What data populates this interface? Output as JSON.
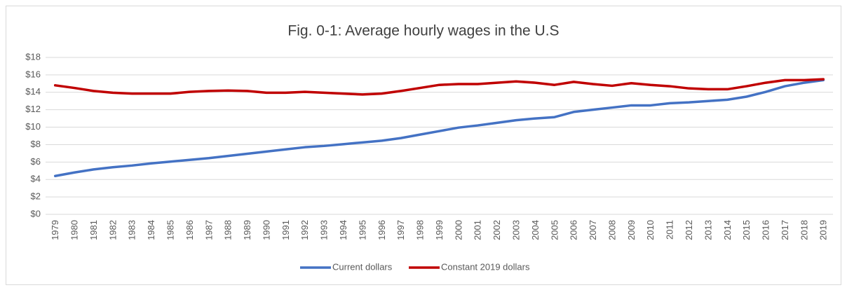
{
  "chart_data": {
    "type": "line",
    "title": "Fig. 0-1: Average hourly wages in the U.S",
    "categories": [
      "1979",
      "1980",
      "1981",
      "1982",
      "1983",
      "1984",
      "1985",
      "1986",
      "1987",
      "1988",
      "1989",
      "1990",
      "1991",
      "1992",
      "1993",
      "1994",
      "1995",
      "1996",
      "1997",
      "1998",
      "1999",
      "2000",
      "2001",
      "2002",
      "2003",
      "2004",
      "2005",
      "2006",
      "2007",
      "2008",
      "2009",
      "2010",
      "2011",
      "2012",
      "2013",
      "2014",
      "2015",
      "2016",
      "2017",
      "2018",
      "2019"
    ],
    "series": [
      {
        "name": "Current dollars",
        "color": "#4472c4",
        "values": [
          4.4,
          4.8,
          5.15,
          5.4,
          5.6,
          5.85,
          6.05,
          6.25,
          6.45,
          6.7,
          6.95,
          7.2,
          7.45,
          7.7,
          7.85,
          8.05,
          8.25,
          8.45,
          8.75,
          9.15,
          9.55,
          9.95,
          10.2,
          10.5,
          10.8,
          11.0,
          11.15,
          11.75,
          12.0,
          12.25,
          12.5,
          12.5,
          12.75,
          12.85,
          13.0,
          13.15,
          13.5,
          14.05,
          14.7,
          15.1,
          15.4
        ]
      },
      {
        "name": "Constant 2019 dollars",
        "color": "#c00000",
        "values": [
          14.8,
          14.5,
          14.15,
          13.95,
          13.85,
          13.85,
          13.85,
          14.05,
          14.15,
          14.2,
          14.15,
          13.95,
          13.95,
          14.05,
          13.95,
          13.85,
          13.75,
          13.85,
          14.15,
          14.5,
          14.85,
          14.95,
          14.95,
          15.1,
          15.25,
          15.1,
          14.85,
          15.2,
          14.95,
          14.75,
          15.05,
          14.85,
          14.7,
          14.45,
          14.35,
          14.35,
          14.7,
          15.1,
          15.4,
          15.4,
          15.5
        ]
      }
    ],
    "ylim": [
      0,
      18
    ],
    "yticks": [
      {
        "value": 0,
        "label": "$0"
      },
      {
        "value": 2,
        "label": "$2"
      },
      {
        "value": 4,
        "label": "$4"
      },
      {
        "value": 6,
        "label": "$6"
      },
      {
        "value": 8,
        "label": "$8"
      },
      {
        "value": 10,
        "label": "$10"
      },
      {
        "value": 12,
        "label": "$12"
      },
      {
        "value": 14,
        "label": "$14"
      },
      {
        "value": 16,
        "label": "$16"
      },
      {
        "value": 18,
        "label": "$18"
      }
    ],
    "grid": true,
    "legend": "bottom"
  }
}
